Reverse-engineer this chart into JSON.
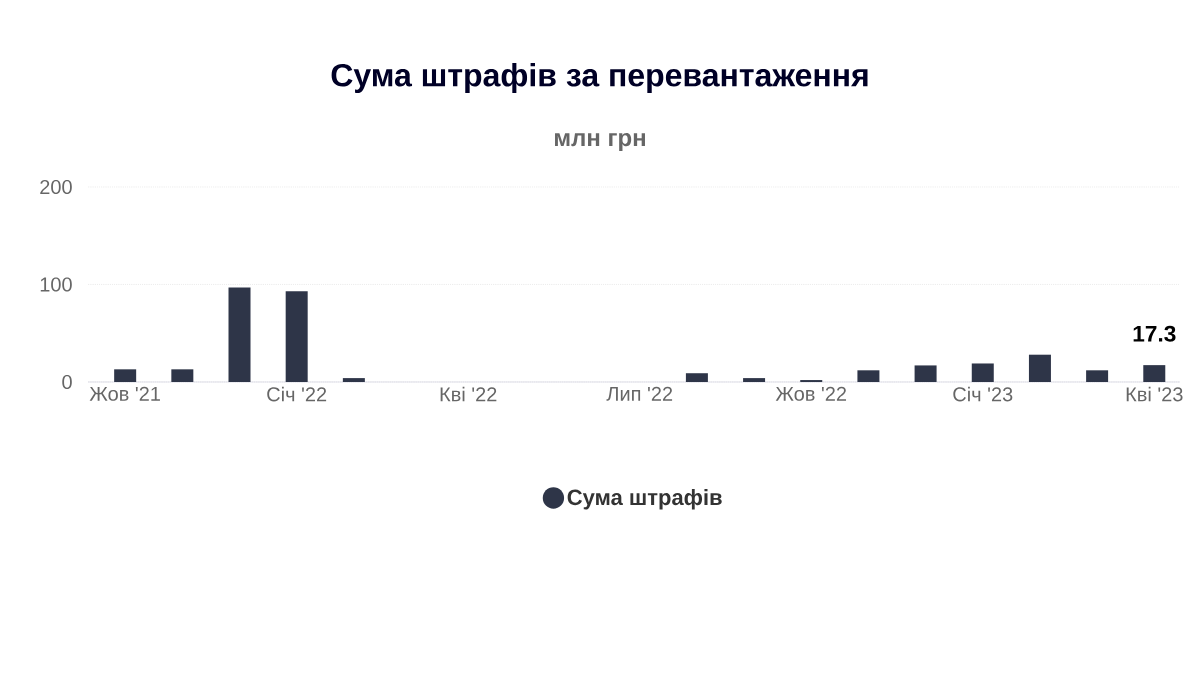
{
  "chart_data": {
    "type": "bar",
    "title": "Сума штрафів за перевантаження",
    "subtitle": "млн грн",
    "categories": [
      "Жов '21",
      null,
      null,
      "Січ '22",
      null,
      null,
      "Кві '22",
      null,
      null,
      "Лип '22",
      null,
      null,
      "Жов '22",
      null,
      null,
      "Січ '23",
      null,
      null,
      "Кві '23"
    ],
    "series": [
      {
        "name": "Сума штрафів",
        "color": "#2e3548",
        "values": [
          13,
          13,
          97,
          93,
          4,
          null,
          null,
          null,
          null,
          null,
          9,
          4,
          2,
          12,
          17,
          19,
          28,
          12,
          17.3
        ],
        "value_labels": [
          null,
          null,
          null,
          null,
          null,
          null,
          null,
          null,
          null,
          null,
          null,
          null,
          null,
          null,
          null,
          null,
          null,
          null,
          "17.3"
        ]
      }
    ],
    "ylim": [
      0,
      200
    ],
    "yticks": [
      0,
      100,
      200
    ],
    "grid": "y",
    "legend": "bottom"
  }
}
